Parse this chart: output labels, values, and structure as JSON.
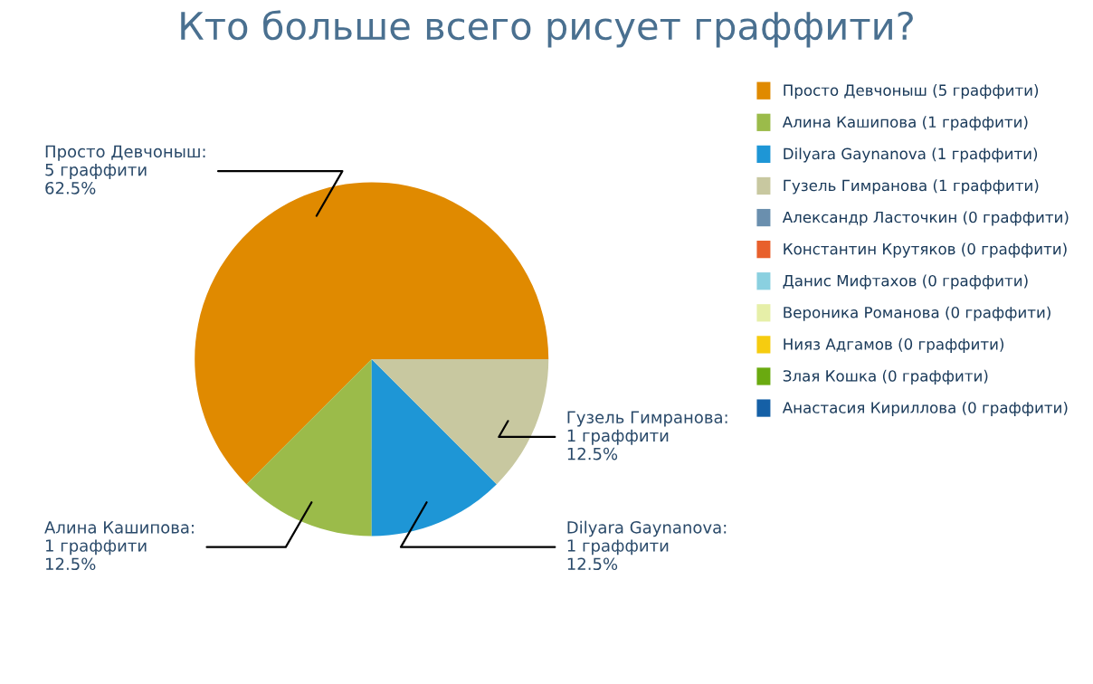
{
  "chart_data": {
    "type": "pie",
    "title": "Кто больше всего рисует граффити?",
    "categories": [
      "Просто Девчоныш (5 граффити)",
      "Алина Кашипова (1 граффити)",
      "Dilyara Gaynanova (1 граффити)",
      "Гузель Гимранова (1 граффити)",
      "Александр Ласточкин (0 граффити)",
      "Константин Крутяков (0 граффити)",
      "Данис Мифтахов (0 граффити)",
      "Вероника Романова (0 граффити)",
      "Нияз Адгамов (0 граффити)",
      "Злая Кошка (0 граффити)",
      "Анастасия Кириллова (0 граффити)"
    ],
    "values": [
      5,
      1,
      1,
      1,
      0,
      0,
      0,
      0,
      0,
      0,
      0
    ],
    "value_labels": [
      "Просто Девчоныш:\n5 граффити\n62.5%",
      "Алина Кашипова:\n1 граффити\n12.5%",
      "Dilyara Gaynanova:\n1 граффити\n12.5%",
      "Гузель Гимранова:\n1 граффити\n12.5%",
      null,
      null,
      null,
      null,
      null,
      null,
      null
    ],
    "colors": [
      "#e08a00",
      "#9bbb4a",
      "#1e96d6",
      "#c8c8a0",
      "#6a8fae",
      "#e8602c",
      "#8ad0e0",
      "#e6efa8",
      "#f6cc10",
      "#6aaa10",
      "#1560a6"
    ],
    "legend": "right"
  }
}
